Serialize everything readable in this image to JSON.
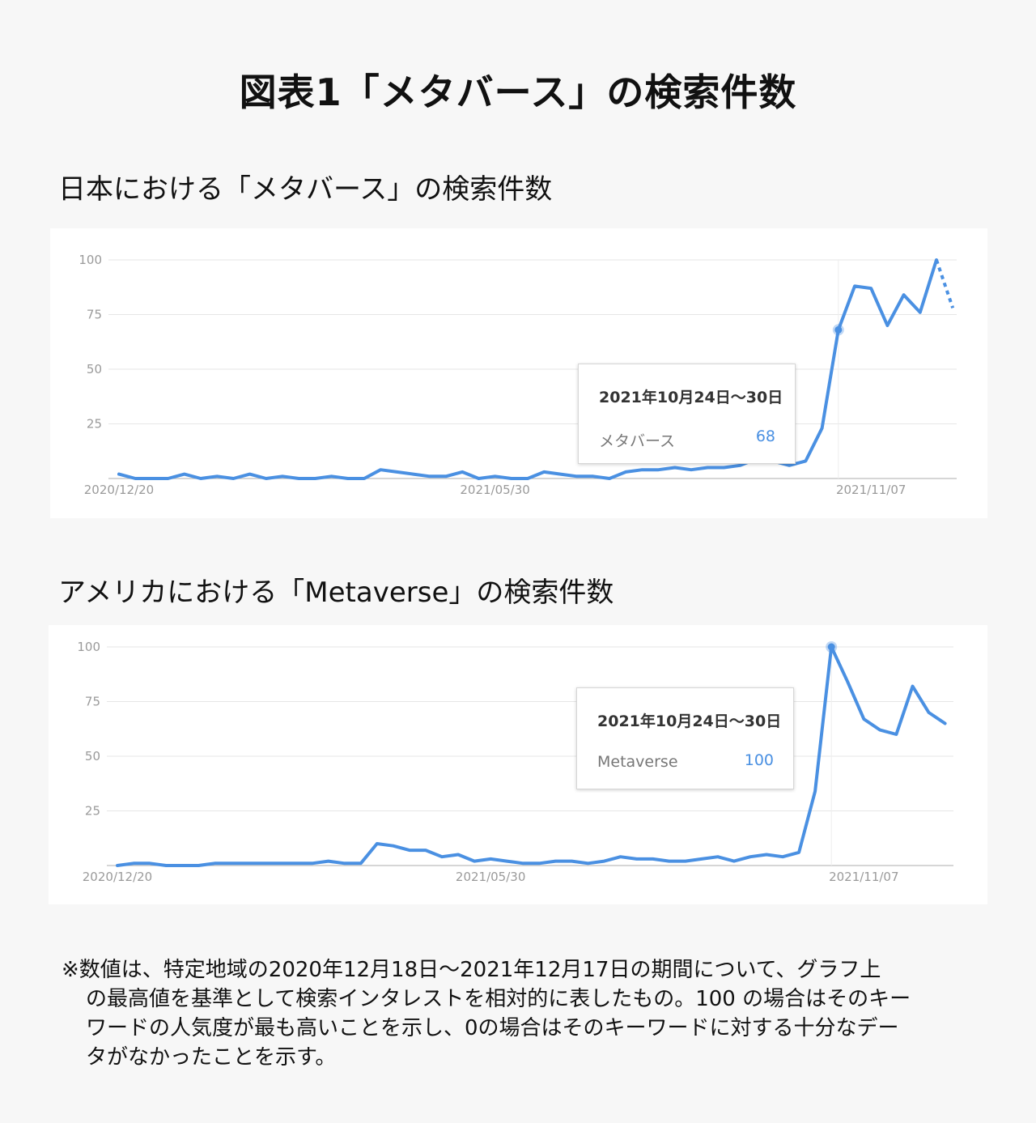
{
  "title": "図表1「メタバース」の検索件数",
  "chart_data": [
    {
      "type": "line",
      "title": "日本における「メタバース」の検索件数",
      "ylim": [
        0,
        100
      ],
      "yticks": [
        "100",
        "75",
        "50",
        "25"
      ],
      "xticks": [
        "2020/12/20",
        "2021/05/30",
        "2021/11/07"
      ],
      "series": [
        {
          "name": "メタバース",
          "values": [
            2,
            0,
            0,
            0,
            2,
            0,
            1,
            0,
            2,
            0,
            1,
            0,
            0,
            1,
            0,
            0,
            4,
            3,
            2,
            1,
            1,
            3,
            0,
            1,
            0,
            0,
            3,
            2,
            1,
            1,
            0,
            3,
            4,
            4,
            5,
            4,
            5,
            5,
            6,
            9,
            8,
            6,
            8,
            23,
            68,
            88,
            87,
            70,
            84,
            76,
            100
          ],
          "projected_last": 78,
          "color": "#4a90e2"
        }
      ],
      "highlight_index": 44,
      "tooltip": {
        "date": "2021年10月24日〜30日",
        "series": "メタバース",
        "value": "68"
      }
    },
    {
      "type": "line",
      "title": "アメリカにおける「Metaverse」の検索件数",
      "ylim": [
        0,
        100
      ],
      "yticks": [
        "100",
        "75",
        "50",
        "25"
      ],
      "xticks": [
        "2020/12/20",
        "2021/05/30",
        "2021/11/07"
      ],
      "series": [
        {
          "name": "Metaverse",
          "values": [
            0,
            1,
            1,
            0,
            0,
            0,
            1,
            1,
            1,
            1,
            1,
            1,
            1,
            2,
            1,
            1,
            10,
            9,
            7,
            7,
            4,
            5,
            2,
            3,
            2,
            1,
            1,
            2,
            2,
            1,
            2,
            4,
            3,
            3,
            2,
            2,
            3,
            4,
            2,
            4,
            5,
            4,
            6,
            34,
            100,
            84,
            67,
            62,
            60,
            82,
            70,
            65
          ],
          "color": "#4a90e2"
        }
      ],
      "highlight_index": 44,
      "tooltip": {
        "date": "2021年10月24日〜30日",
        "series": "Metaverse",
        "value": "100"
      }
    }
  ],
  "footnote": {
    "lines": [
      "※数値は、特定地域の2020年12月18日〜2021年12月17日の期間について、グラフ上",
      "の最高値を基準として検索インタレストを相対的に表したもの。100 の場合はそのキー",
      "ワードの人気度が最も高いことを示し、0の場合はそのキーワードに対する十分なデー",
      "タがなかったことを示す。"
    ]
  }
}
